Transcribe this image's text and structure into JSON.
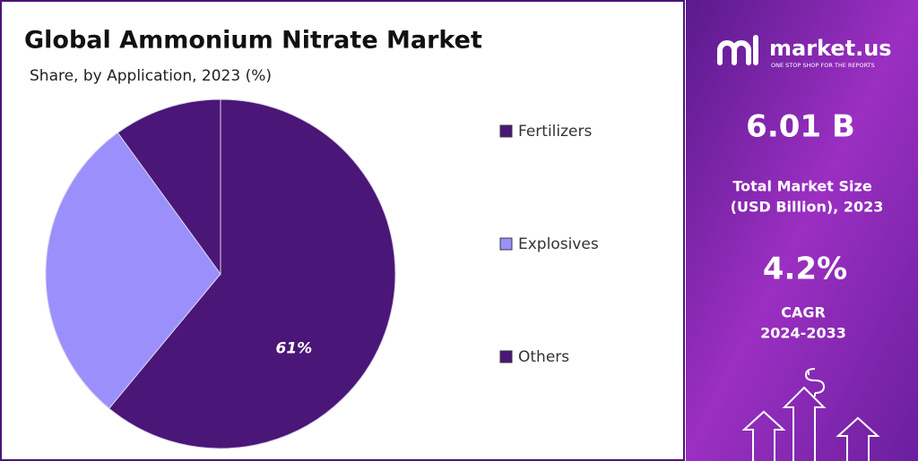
{
  "chart_data": {
    "type": "pie",
    "title": "Global Ammonium Nitrate Market",
    "subtitle": "Share, by Application, 2023 (%)",
    "categories": [
      "Fertilizers",
      "Explosives",
      "Others"
    ],
    "values": [
      61,
      29,
      10
    ],
    "value_labels": [
      "61%",
      null,
      null
    ],
    "colors": [
      "#4a1677",
      "#9b90fb",
      "#4a1677"
    ],
    "legend": "right"
  },
  "sidebar": {
    "brand": "market.us",
    "tagline": "ONE STOP SHOP FOR THE REPORTS",
    "market_size": "6.01 B",
    "market_size_label": [
      "Total Market Size",
      "(USD Billion), 2023"
    ],
    "cagr": "4.2%",
    "cagr_label": [
      "CAGR",
      "2024-2033"
    ]
  }
}
